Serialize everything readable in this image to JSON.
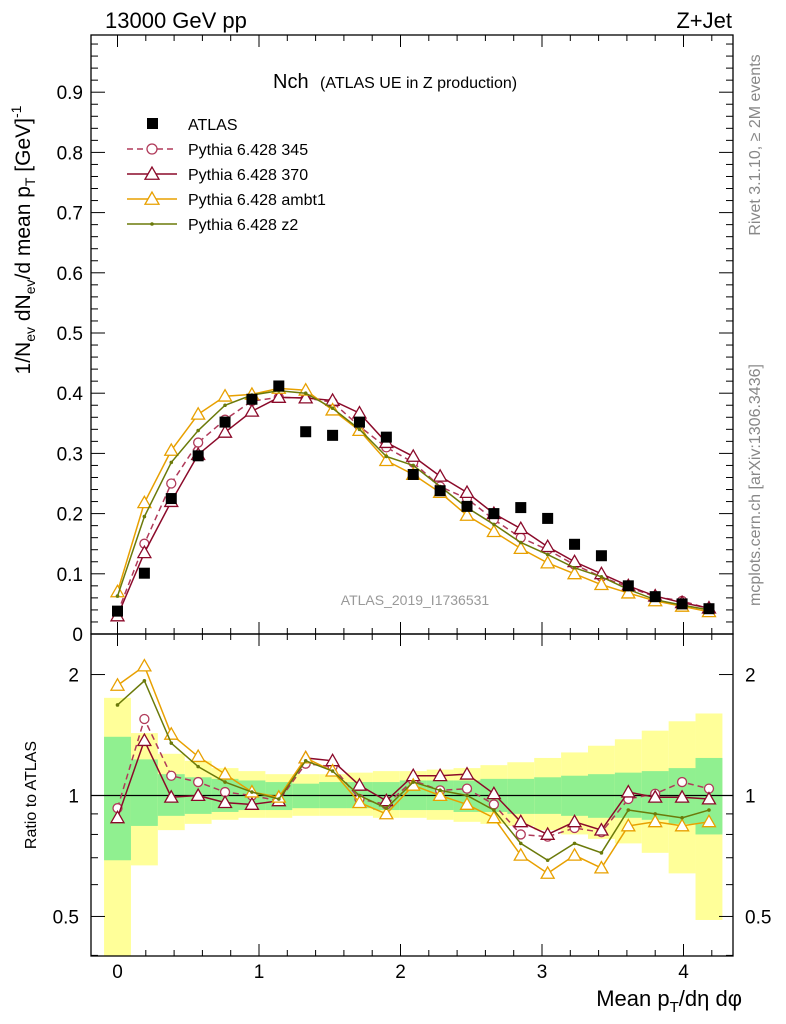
{
  "header": {
    "left": "13000 GeV pp",
    "right": "Z+Jet"
  },
  "side_labels": {
    "rivet": "Rivet 3.1.10, ≥ 2M events",
    "mcplots": "mcplots.cern.ch [arXiv:1306.3436]"
  },
  "watermark": "ATLAS_2019_I1736531",
  "chart_data": {
    "type": "scatter",
    "title_main": "Nch",
    "title_sub": "(ATLAS UE in Z production)",
    "xlabel": "Mean p_T/dη dφ",
    "ylabel": "1/N_ev dN_ev/d mean p_T [GeV]^-1",
    "ratio_ylabel": "Ratio to ATLAS",
    "xlim": [
      -0.2,
      4.35
    ],
    "ylim": [
      0,
      0.99
    ],
    "ratio_ylim": [
      0.335,
      2.3
    ],
    "xticks": [
      0,
      1,
      2,
      3,
      4
    ],
    "yticks": [
      0,
      0.1,
      0.2,
      0.3,
      0.4,
      0.5,
      0.6,
      0.7,
      0.8,
      0.9
    ],
    "ratio_yticks": [
      0.5,
      1,
      2
    ],
    "x": [
      0,
      0.19,
      0.38,
      0.57,
      0.76,
      0.95,
      1.14,
      1.33,
      1.52,
      1.71,
      1.9,
      2.09,
      2.28,
      2.47,
      2.66,
      2.85,
      3.04,
      3.23,
      3.42,
      3.61,
      3.8,
      3.99,
      4.18
    ],
    "data": {
      "name": "ATLAS",
      "values": [
        0.038,
        0.101,
        0.225,
        0.296,
        0.352,
        0.39,
        0.412,
        0.336,
        0.33,
        0.352,
        0.327,
        0.265,
        0.238,
        0.212,
        0.2,
        0.21,
        0.192,
        0.149,
        0.13,
        0.08,
        0.062,
        0.05,
        0.042
      ]
    },
    "series": [
      {
        "name": "Pythia 6.428 345",
        "color": "#b03a5a",
        "marker": "circle",
        "dashed": true,
        "values": [
          0.035,
          0.15,
          0.25,
          0.318,
          0.356,
          0.387,
          0.393,
          0.392,
          0.385,
          0.345,
          0.31,
          0.285,
          0.245,
          0.225,
          0.19,
          0.16,
          0.14,
          0.115,
          0.095,
          0.078,
          0.062,
          0.055,
          0.042
        ],
        "ratio": [
          0.93,
          1.55,
          1.12,
          1.08,
          1.02,
          1.0,
          0.97,
          1.2,
          1.18,
          0.98,
          0.95,
          1.09,
          1.03,
          1.04,
          0.95,
          0.8,
          0.79,
          0.83,
          0.81,
          0.98,
          1.01,
          1.08,
          1.04
        ]
      },
      {
        "name": "Pythia 6.428 370",
        "color": "#8b0a2a",
        "marker": "triangle",
        "dashed": false,
        "values": [
          0.03,
          0.135,
          0.22,
          0.298,
          0.335,
          0.37,
          0.393,
          0.392,
          0.388,
          0.367,
          0.318,
          0.295,
          0.262,
          0.235,
          0.2,
          0.175,
          0.145,
          0.12,
          0.1,
          0.08,
          0.063,
          0.052,
          0.043
        ],
        "ratio": [
          0.88,
          1.37,
          0.99,
          1.0,
          0.96,
          0.95,
          0.97,
          1.24,
          1.22,
          1.06,
          0.97,
          1.12,
          1.12,
          1.13,
          1.01,
          0.86,
          0.8,
          0.86,
          0.82,
          1.02,
          0.99,
          0.99,
          0.98
        ]
      },
      {
        "name": "Pythia 6.428 ambt1",
        "color": "#e8a000",
        "marker": "triangle",
        "dashed": false,
        "values": [
          0.07,
          0.218,
          0.305,
          0.365,
          0.395,
          0.398,
          0.408,
          0.405,
          0.372,
          0.338,
          0.288,
          0.265,
          0.235,
          0.197,
          0.17,
          0.142,
          0.118,
          0.1,
          0.082,
          0.068,
          0.055,
          0.046,
          0.037
        ],
        "ratio": [
          1.88,
          2.1,
          1.42,
          1.25,
          1.13,
          1.02,
          0.99,
          1.24,
          1.15,
          0.96,
          0.9,
          1.06,
          1.0,
          0.95,
          0.88,
          0.71,
          0.64,
          0.71,
          0.66,
          0.84,
          0.86,
          0.84,
          0.86
        ]
      },
      {
        "name": "Pythia 6.428 z2",
        "color": "#6b7a0a",
        "marker": "dot",
        "dashed": false,
        "values": [
          0.063,
          0.195,
          0.285,
          0.338,
          0.38,
          0.397,
          0.404,
          0.4,
          0.375,
          0.34,
          0.295,
          0.28,
          0.245,
          0.21,
          0.182,
          0.152,
          0.132,
          0.11,
          0.095,
          0.074,
          0.057,
          0.048,
          0.04
        ],
        "ratio": [
          1.68,
          1.93,
          1.35,
          1.18,
          1.08,
          1.02,
          0.98,
          1.22,
          1.15,
          1.0,
          0.93,
          1.08,
          1.03,
          1.0,
          0.92,
          0.76,
          0.69,
          0.76,
          0.72,
          0.92,
          0.9,
          0.88,
          0.92
        ]
      }
    ],
    "ratio_bands": {
      "green_color": "#90f090",
      "yellow_color": "#ffff99",
      "green": [
        [
          0.69,
          1.4
        ],
        [
          0.84,
          1.23
        ],
        [
          0.89,
          1.13
        ],
        [
          0.9,
          1.11
        ],
        [
          0.91,
          1.1
        ],
        [
          0.92,
          1.09
        ],
        [
          0.92,
          1.08
        ],
        [
          0.93,
          1.07
        ],
        [
          0.93,
          1.08
        ],
        [
          0.93,
          1.08
        ],
        [
          0.92,
          1.08
        ],
        [
          0.92,
          1.09
        ],
        [
          0.92,
          1.09
        ],
        [
          0.91,
          1.09
        ],
        [
          0.91,
          1.1
        ],
        [
          0.9,
          1.1
        ],
        [
          0.9,
          1.11
        ],
        [
          0.89,
          1.12
        ],
        [
          0.88,
          1.13
        ],
        [
          0.88,
          1.14
        ],
        [
          0.87,
          1.15
        ],
        [
          0.85,
          1.17
        ],
        [
          0.8,
          1.24
        ]
      ],
      "yellow": [
        [
          0.33,
          1.75
        ],
        [
          0.67,
          1.43
        ],
        [
          0.82,
          1.27
        ],
        [
          0.85,
          1.22
        ],
        [
          0.87,
          1.17
        ],
        [
          0.88,
          1.15
        ],
        [
          0.88,
          1.13
        ],
        [
          0.89,
          1.13
        ],
        [
          0.89,
          1.13
        ],
        [
          0.89,
          1.14
        ],
        [
          0.88,
          1.15
        ],
        [
          0.88,
          1.15
        ],
        [
          0.87,
          1.16
        ],
        [
          0.86,
          1.17
        ],
        [
          0.85,
          1.19
        ],
        [
          0.84,
          1.21
        ],
        [
          0.82,
          1.24
        ],
        [
          0.8,
          1.28
        ],
        [
          0.78,
          1.33
        ],
        [
          0.76,
          1.38
        ],
        [
          0.72,
          1.45
        ],
        [
          0.64,
          1.53
        ],
        [
          0.49,
          1.6
        ]
      ]
    }
  }
}
